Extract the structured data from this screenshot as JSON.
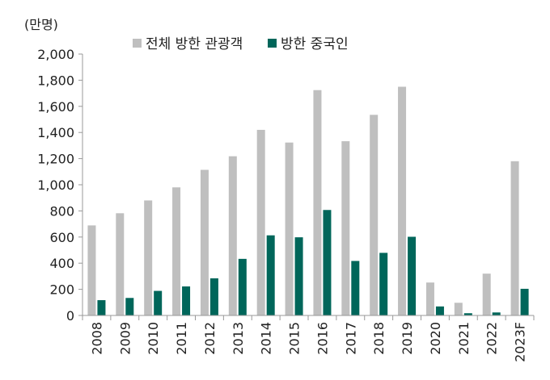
{
  "chart_data": {
    "type": "bar",
    "unit_label": "(만명)",
    "categories": [
      "2008",
      "2009",
      "2010",
      "2011",
      "2012",
      "2013",
      "2014",
      "2015",
      "2016",
      "2017",
      "2018",
      "2019",
      "2020",
      "2021",
      "2022",
      "2023F"
    ],
    "series": [
      {
        "name": "전체 방한 관광객",
        "color": "#bfbfbf",
        "values": [
          689,
          782,
          880,
          980,
          1114,
          1218,
          1420,
          1323,
          1724,
          1333,
          1535,
          1750,
          252,
          97,
          320,
          1180
        ]
      },
      {
        "name": "방한 중국인",
        "color": "#00665a",
        "values": [
          117,
          134,
          188,
          222,
          284,
          433,
          613,
          598,
          807,
          417,
          479,
          602,
          69,
          17,
          23,
          204
        ]
      }
    ],
    "ylim": [
      0,
      2000
    ],
    "yticks": [
      0,
      200,
      400,
      600,
      800,
      1000,
      1200,
      1400,
      1600,
      1800,
      2000
    ],
    "ytick_labels": [
      "0",
      "200",
      "400",
      "600",
      "800",
      "1,000",
      "1,200",
      "1,400",
      "1,600",
      "1,800",
      "2,000"
    ],
    "legend_position": "top",
    "grid": false
  }
}
